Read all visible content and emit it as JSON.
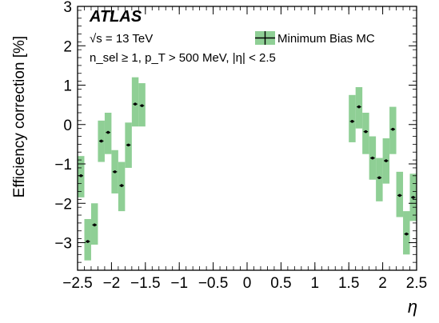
{
  "chart_data": {
    "type": "scatter",
    "experiment_label": "ATLAS",
    "energy_label": "√s = 13 TeV",
    "selection_label": "n_sel ≥ 1, p_T > 500 MeV, |η| < 2.5",
    "ylabel": "Efficiency correction [%]",
    "xlabel": "η",
    "xlim": [
      -2.5,
      2.5
    ],
    "ylim": [
      -3.7,
      3
    ],
    "x_ticks": [
      -2.5,
      -2,
      -1.5,
      -1,
      -0.5,
      0,
      0.5,
      1,
      1.5,
      2,
      2.5
    ],
    "x_tick_labels": [
      "−2.5",
      "−2",
      "−1.5",
      "−1",
      "−0.5",
      "0",
      "0.5",
      "1",
      "1.5",
      "2",
      "2.5"
    ],
    "y_ticks": [
      -3,
      -2,
      -1,
      0,
      1,
      2,
      3
    ],
    "y_tick_labels": [
      "−3",
      "−2",
      "−1",
      "0",
      "1",
      "2",
      "3"
    ],
    "legend_position": "top-right",
    "colors": {
      "band": "#8fcf95",
      "marker": "#000000"
    },
    "series": [
      {
        "name": "Minimum Bias MC",
        "bin_width": 0.1,
        "x": [
          -2.45,
          -2.35,
          -2.25,
          -2.15,
          -2.05,
          -1.95,
          -1.85,
          -1.75,
          -1.65,
          -1.55,
          1.55,
          1.65,
          1.75,
          1.85,
          1.95,
          2.05,
          2.15,
          2.25,
          2.35,
          2.45
        ],
        "y": [
          -1.3,
          -2.97,
          -2.55,
          -0.42,
          -0.2,
          -1.2,
          -1.55,
          -0.52,
          0.52,
          0.48,
          0.08,
          0.45,
          -0.18,
          -0.85,
          -1.35,
          -0.92,
          -0.12,
          -1.8,
          -2.78,
          -1.85
        ],
        "band_low": [
          -1.85,
          -3.45,
          -3.05,
          -0.95,
          -0.75,
          -1.75,
          -2.2,
          -1.1,
          -0.05,
          -0.05,
          -0.45,
          -0.1,
          -0.75,
          -1.4,
          -1.95,
          -1.5,
          -0.75,
          -2.35,
          -3.3,
          -2.45
        ],
        "band_high": [
          -0.8,
          -2.4,
          -2.0,
          0.1,
          0.3,
          -0.65,
          -0.95,
          0.05,
          1.2,
          1.05,
          0.75,
          0.95,
          0.3,
          -0.3,
          -0.85,
          -0.35,
          0.45,
          -1.2,
          -2.2,
          -1.25
        ]
      }
    ]
  }
}
